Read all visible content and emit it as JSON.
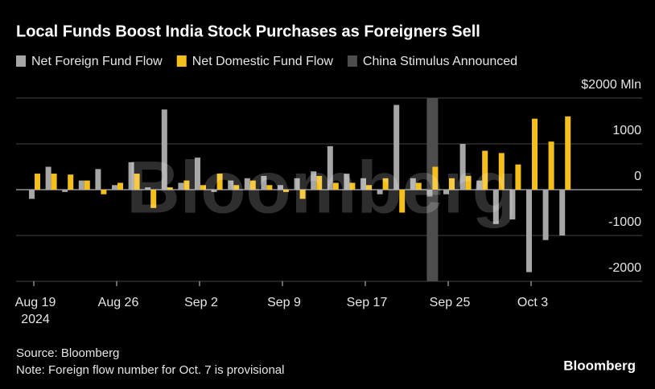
{
  "chart_data": {
    "type": "bar",
    "title": "Local Funds Boost India Stock Purchases as Foreigners Sell",
    "categories": [
      "Aug 19",
      null,
      null,
      null,
      null,
      "Aug 26",
      null,
      null,
      null,
      null,
      "Sep 2",
      null,
      null,
      null,
      null,
      "Sep 9",
      null,
      null,
      null,
      null,
      "Sep 17",
      null,
      null,
      null,
      null,
      "Sep 25",
      null,
      null,
      null,
      null,
      "Oct 3",
      null,
      null
    ],
    "year_label": "2024",
    "series": [
      {
        "name": "Net Foreign Fund Flow",
        "color": "#a6a6a6",
        "values": [
          -200,
          500,
          -50,
          200,
          450,
          100,
          600,
          50,
          1750,
          150,
          700,
          -50,
          200,
          250,
          300,
          100,
          250,
          400,
          950,
          350,
          250,
          -100,
          1850,
          250,
          -150,
          -100,
          1000,
          200,
          -750,
          -650,
          -1800,
          -1100,
          -1000
        ]
      },
      {
        "name": "Net Domestic Fund Flow",
        "color": "#f5bf1b",
        "values": [
          350,
          350,
          330,
          200,
          -100,
          150,
          350,
          -400,
          50,
          200,
          100,
          350,
          100,
          200,
          100,
          -50,
          -200,
          300,
          150,
          150,
          100,
          250,
          -500,
          150,
          500,
          250,
          300,
          850,
          800,
          550,
          1550,
          1050,
          1600
        ]
      },
      {
        "name": "China Stimulus Announced",
        "color": "#4d4d4d",
        "kind": "band",
        "values": [
          null,
          null,
          null,
          null,
          null,
          null,
          null,
          null,
          null,
          null,
          null,
          null,
          null,
          null,
          null,
          null,
          null,
          null,
          null,
          null,
          null,
          null,
          null,
          null,
          2000,
          null,
          null,
          null,
          null,
          null,
          null,
          null,
          null
        ]
      }
    ],
    "ylim": [
      -2000,
      2000
    ],
    "yticks": [
      -2000,
      -1000,
      0,
      1000,
      {
        "value": 2000,
        "label": "$2000 Mln"
      }
    ],
    "grid": true,
    "source": "Source: Bloomberg",
    "note": "Note: Foreign flow number for Oct. 7 is provisional",
    "logo": "Bloomberg",
    "watermark": "Bloomberg"
  }
}
